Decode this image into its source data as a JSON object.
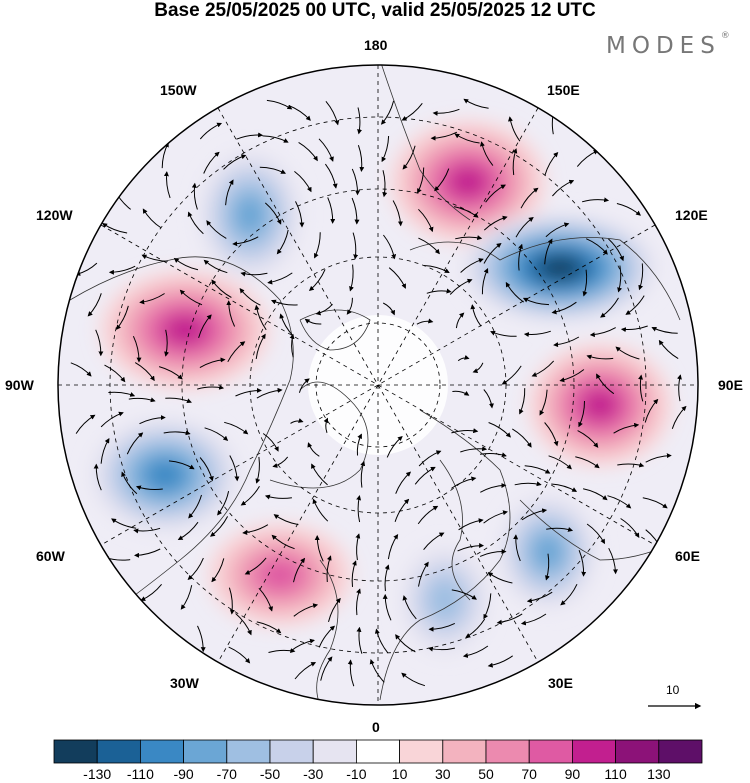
{
  "title": "Base 25/05/2025 00 UTC, valid 25/05/2025 12 UTC",
  "brand": {
    "name": "MODES",
    "mark": "®"
  },
  "map": {
    "projection": "north-polar-stereographic",
    "longitude_labels": {
      "top": "180",
      "top_left": "150W",
      "top_right": "150E",
      "upper_left": "120W",
      "upper_right": "120E",
      "left": "90W",
      "right": "90E",
      "lower_left": "60W",
      "lower_right": "60E",
      "bottom_left": "30W",
      "bottom_right": "30E",
      "bottom": "0"
    },
    "anomaly_centers": [
      {
        "name": "east-siberia-high",
        "sign": "positive",
        "peak_class": "90"
      },
      {
        "name": "north-pacific-low",
        "sign": "negative",
        "peak_class": "-70"
      },
      {
        "name": "okhotsk-low",
        "sign": "negative",
        "peak_class": "-130"
      },
      {
        "name": "alaska-canada-high",
        "sign": "positive",
        "peak_class": "90"
      },
      {
        "name": "central-siberia-high",
        "sign": "positive",
        "peak_class": "90"
      },
      {
        "name": "labrador-low",
        "sign": "negative",
        "peak_class": "-90"
      },
      {
        "name": "north-atlantic-high",
        "sign": "positive",
        "peak_class": "70"
      },
      {
        "name": "european-low",
        "sign": "negative",
        "peak_class": "-50"
      },
      {
        "name": "ural-low",
        "sign": "negative",
        "peak_class": "-70"
      }
    ]
  },
  "vector_reference": {
    "label": "10"
  },
  "colorbar": {
    "ticks": [
      "-130",
      "-110",
      "-90",
      "-70",
      "-50",
      "-30",
      "-10",
      "10",
      "30",
      "50",
      "70",
      "90",
      "110",
      "130"
    ],
    "colors": [
      "#123d5c",
      "#1b6196",
      "#3a88c4",
      "#6ba6d5",
      "#9fbfe2",
      "#c8d1ea",
      "#e6e4f1",
      "#ffffff",
      "#f9d5d8",
      "#f3b3bf",
      "#ec8aaf",
      "#df5aa3",
      "#c21f8f",
      "#8c1278",
      "#5e0f68"
    ]
  }
}
